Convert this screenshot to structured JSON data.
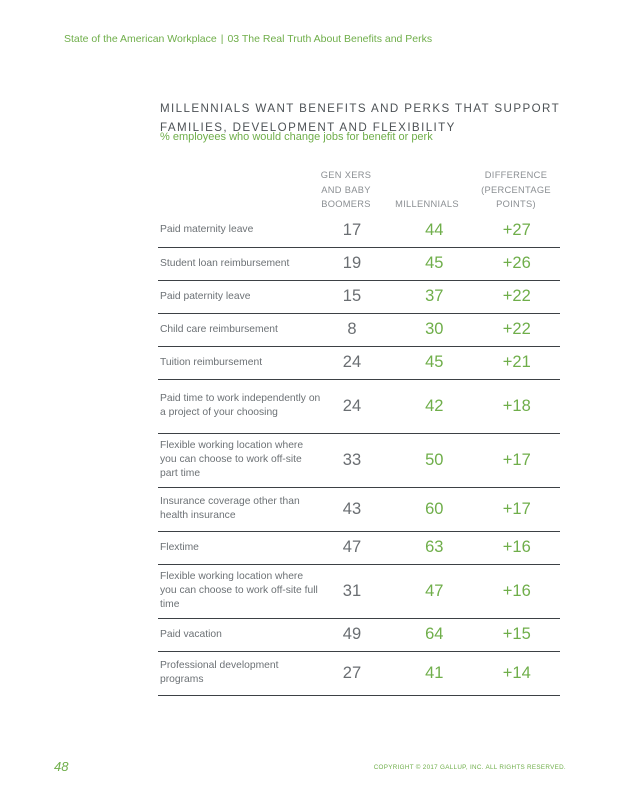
{
  "header": {
    "report": "State of the American Workplace",
    "separator": "|",
    "section": "03 The Real Truth About Benefits and Perks"
  },
  "title": "MILLENNIALS WANT BENEFITS AND PERKS THAT SUPPORT FAMILIES, DEVELOPMENT AND FLEXIBILITY",
  "subtitle": "% employees who would change jobs for benefit or perk",
  "columns": {
    "gen_x_boomers": "GEN XERS AND BABY BOOMERS",
    "millennials": "MILLENNIALS",
    "difference": "DIFFERENCE (PERCENTAGE POINTS)"
  },
  "rows": [
    {
      "label": "Paid maternity leave",
      "gen": "17",
      "mil": "44",
      "diff": "+27"
    },
    {
      "label": "Student loan reimbursement",
      "gen": "19",
      "mil": "45",
      "diff": "+26"
    },
    {
      "label": "Paid paternity leave",
      "gen": "15",
      "mil": "37",
      "diff": "+22"
    },
    {
      "label": "Child care reimbursement",
      "gen": "8",
      "mil": "30",
      "diff": "+22"
    },
    {
      "label": "Tuition reimbursement",
      "gen": "24",
      "mil": "45",
      "diff": "+21"
    },
    {
      "label": "Paid time to work independently on a project of your choosing",
      "gen": "24",
      "mil": "42",
      "diff": "+18"
    },
    {
      "label": "Flexible working location where you can choose to work off-site part time",
      "gen": "33",
      "mil": "50",
      "diff": "+17"
    },
    {
      "label": "Insurance coverage other than health insurance",
      "gen": "43",
      "mil": "60",
      "diff": "+17"
    },
    {
      "label": "Flextime",
      "gen": "47",
      "mil": "63",
      "diff": "+16"
    },
    {
      "label": "Flexible working location where you can choose to work off-site full time",
      "gen": "31",
      "mil": "47",
      "diff": "+16"
    },
    {
      "label": "Paid vacation",
      "gen": "49",
      "mil": "64",
      "diff": "+15"
    },
    {
      "label": "Professional development programs",
      "gen": "27",
      "mil": "41",
      "diff": "+14"
    }
  ],
  "footer": {
    "page_number": "48",
    "copyright": "COPYRIGHT © 2017 GALLUP, INC. ALL RIGHTS RESERVED."
  }
}
